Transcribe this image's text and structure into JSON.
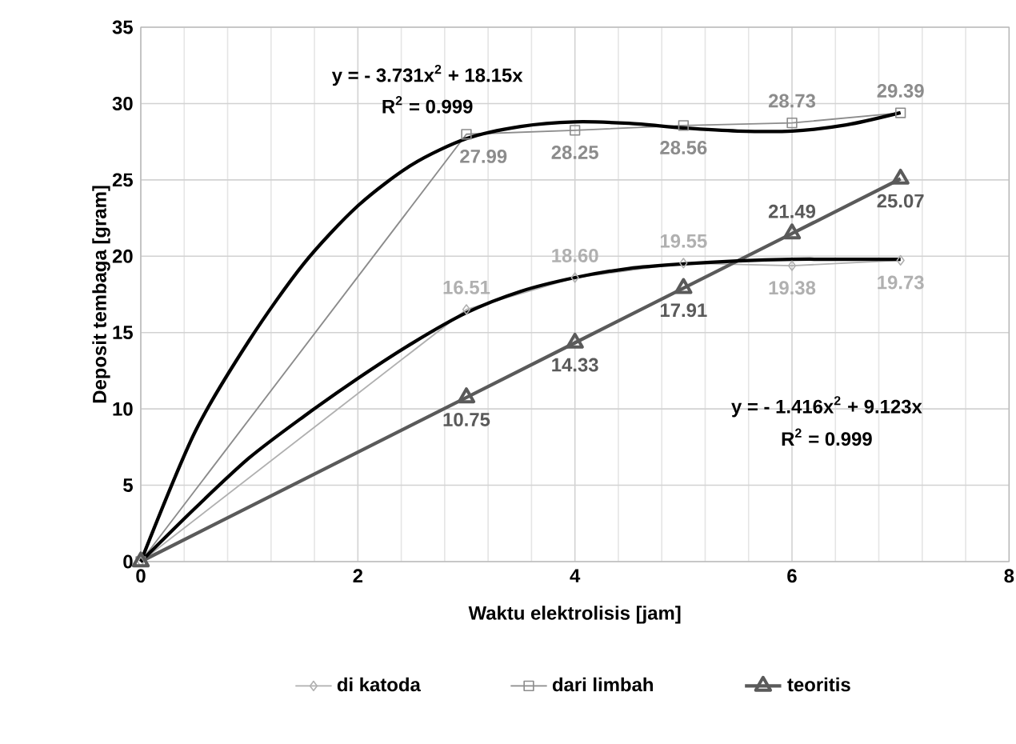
{
  "chart_data": {
    "type": "line",
    "xlabel": "Waktu elektrolisis [jam]",
    "ylabel": "Deposit tembaga [gram]",
    "xlim": [
      0,
      8
    ],
    "ylim": [
      0,
      35
    ],
    "xticks": [
      0,
      2,
      4,
      6,
      8
    ],
    "yticks": [
      0,
      5,
      10,
      15,
      20,
      25,
      30,
      35
    ],
    "grid": true,
    "legend": "bottom",
    "line_style": "solid",
    "series": [
      {
        "name": "di katoda",
        "color": "#b0b0b0",
        "marker": "diamond",
        "x": [
          0,
          3,
          4,
          5,
          6,
          7
        ],
        "values": [
          0,
          16.51,
          18.6,
          19.55,
          19.38,
          19.73
        ],
        "value_labels": [
          null,
          "16.51",
          "18.60",
          "19.55",
          "19.38",
          "19.73"
        ]
      },
      {
        "name": "dari limbah",
        "color": "#8c8c8c",
        "marker": "square",
        "x": [
          0,
          3,
          4,
          5,
          6,
          7
        ],
        "values": [
          0,
          27.99,
          28.25,
          28.56,
          28.73,
          29.39
        ],
        "value_labels": [
          null,
          "27.99",
          "28.25",
          "28.56",
          "28.73",
          "29.39"
        ]
      },
      {
        "name": "teoritis",
        "color": "#5a5a5a",
        "marker": "triangle",
        "x": [
          0,
          3,
          4,
          5,
          6,
          7
        ],
        "values": [
          0,
          10.75,
          14.33,
          17.91,
          21.49,
          25.07
        ],
        "value_labels": [
          null,
          "10.75",
          "14.33",
          "17.91",
          "21.49",
          "25.07"
        ]
      },
      {
        "color": "#000000",
        "marker": "none",
        "x": [
          0,
          0.5,
          1,
          1.5,
          2,
          2.5,
          3,
          3.5,
          4,
          4.5,
          5,
          5.5,
          6,
          6.5,
          7
        ],
        "values": [
          0,
          8.5,
          14.5,
          19.5,
          23.3,
          26,
          27.7,
          28.5,
          28.8,
          28.7,
          28.4,
          28.2,
          28.2,
          28.6,
          29.4
        ]
      },
      {
        "color": "#000000",
        "marker": "none",
        "x": [
          0,
          0.5,
          1,
          1.5,
          2,
          2.5,
          3,
          3.5,
          4,
          4.5,
          5,
          5.5,
          6,
          6.5,
          7
        ],
        "values": [
          0,
          3.5,
          6.8,
          9.5,
          12,
          14.3,
          16.3,
          17.7,
          18.6,
          19.2,
          19.5,
          19.7,
          19.8,
          19.8,
          19.8
        ]
      }
    ],
    "annotations": [
      "y =  - 3.731x$^{2}$ + 18.15x",
      "R$^{2}$ = 0.999",
      "y =  - 1.416x$^{2}$ + 9.123x",
      "R$^{2}$ = 0.999"
    ]
  }
}
